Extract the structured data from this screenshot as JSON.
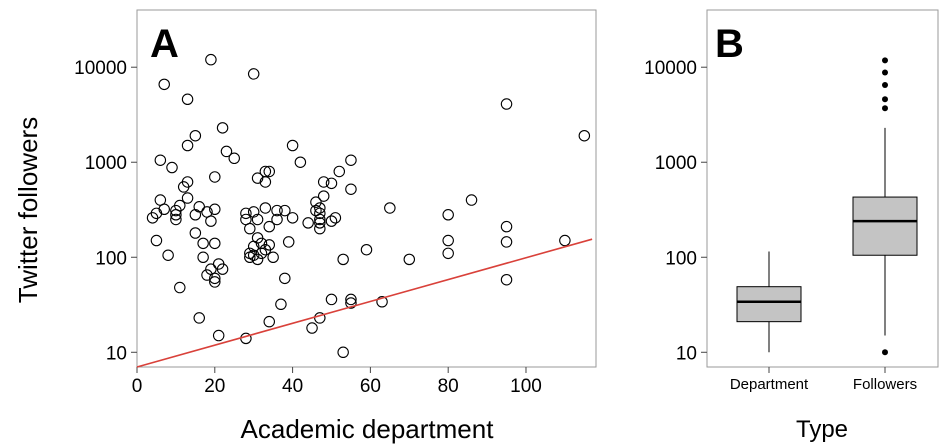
{
  "chart_data": [
    {
      "panel": "A",
      "type": "scatter",
      "xlabel": "Academic department",
      "ylabel": "Twitter followers",
      "xlim": [
        0,
        118
      ],
      "ylim": [
        7,
        40000
      ],
      "y_scale": "log",
      "x_ticks": [
        0,
        20,
        40,
        60,
        80,
        100
      ],
      "y_ticks": [
        10,
        100,
        1000,
        10000
      ],
      "grid": false,
      "fit_line": {
        "color": "#d9413a",
        "x": [
          0,
          117
        ],
        "y": [
          7,
          155
        ]
      },
      "points": [
        [
          4,
          260
        ],
        [
          5,
          150
        ],
        [
          5,
          290
        ],
        [
          6,
          1050
        ],
        [
          6,
          400
        ],
        [
          7,
          6600
        ],
        [
          7,
          320
        ],
        [
          8,
          105
        ],
        [
          9,
          880
        ],
        [
          10,
          280
        ],
        [
          10,
          310
        ],
        [
          10,
          250
        ],
        [
          11,
          350
        ],
        [
          11,
          48
        ],
        [
          12,
          550
        ],
        [
          13,
          4600
        ],
        [
          13,
          1500
        ],
        [
          13,
          620
        ],
        [
          13,
          420
        ],
        [
          15,
          1900
        ],
        [
          15,
          280
        ],
        [
          15,
          180
        ],
        [
          16,
          23
        ],
        [
          16,
          340
        ],
        [
          17,
          140
        ],
        [
          17,
          100
        ],
        [
          18,
          300
        ],
        [
          18,
          65
        ],
        [
          19,
          12000
        ],
        [
          19,
          240
        ],
        [
          19,
          75
        ],
        [
          20,
          700
        ],
        [
          20,
          320
        ],
        [
          20,
          140
        ],
        [
          20,
          60
        ],
        [
          20,
          55
        ],
        [
          21,
          15
        ],
        [
          21,
          85
        ],
        [
          22,
          2300
        ],
        [
          22,
          75
        ],
        [
          23,
          1300
        ],
        [
          25,
          1100
        ],
        [
          28,
          14
        ],
        [
          28,
          250
        ],
        [
          28,
          290
        ],
        [
          29,
          200
        ],
        [
          29,
          110
        ],
        [
          29,
          100
        ],
        [
          30,
          8500
        ],
        [
          30,
          105
        ],
        [
          30,
          300
        ],
        [
          30,
          130
        ],
        [
          31,
          160
        ],
        [
          31,
          95
        ],
        [
          31,
          680
        ],
        [
          31,
          250
        ],
        [
          32,
          110
        ],
        [
          32,
          140
        ],
        [
          33,
          800
        ],
        [
          33,
          120
        ],
        [
          33,
          620
        ],
        [
          33,
          330
        ],
        [
          34,
          800
        ],
        [
          34,
          210
        ],
        [
          34,
          135
        ],
        [
          34,
          21
        ],
        [
          35,
          100
        ],
        [
          36,
          250
        ],
        [
          36,
          310
        ],
        [
          37,
          32
        ],
        [
          38,
          60
        ],
        [
          38,
          310
        ],
        [
          39,
          145
        ],
        [
          40,
          1500
        ],
        [
          40,
          260
        ],
        [
          42,
          1000
        ],
        [
          44,
          230
        ],
        [
          45,
          18
        ],
        [
          46,
          380
        ],
        [
          46,
          310
        ],
        [
          47,
          330
        ],
        [
          47,
          290
        ],
        [
          47,
          250
        ],
        [
          47,
          230
        ],
        [
          47,
          200
        ],
        [
          47,
          23
        ],
        [
          48,
          440
        ],
        [
          48,
          620
        ],
        [
          50,
          36
        ],
        [
          50,
          600
        ],
        [
          50,
          240
        ],
        [
          51,
          260
        ],
        [
          52,
          800
        ],
        [
          53,
          95
        ],
        [
          53,
          10
        ],
        [
          55,
          1050
        ],
        [
          55,
          520
        ],
        [
          55,
          36
        ],
        [
          55,
          33
        ],
        [
          59,
          120
        ],
        [
          63,
          34
        ],
        [
          65,
          330
        ],
        [
          70,
          95
        ],
        [
          80,
          280
        ],
        [
          80,
          150
        ],
        [
          80,
          110
        ],
        [
          86,
          400
        ],
        [
          95,
          4100
        ],
        [
          95,
          210
        ],
        [
          95,
          145
        ],
        [
          95,
          58
        ],
        [
          110,
          150
        ],
        [
          115,
          1900
        ]
      ]
    },
    {
      "panel": "B",
      "type": "box",
      "xlabel": "Type",
      "categories": [
        "Department",
        "Followers"
      ],
      "y_scale": "log",
      "ylim": [
        7,
        40000
      ],
      "y_ticks": [
        10,
        100,
        1000,
        10000
      ],
      "fill_color": "#c4c4c4",
      "boxes": [
        {
          "category": "Department",
          "whisker_low": 10,
          "q1": 21,
          "median": 34,
          "q3": 49,
          "whisker_high": 115,
          "outliers": []
        },
        {
          "category": "Followers",
          "whisker_low": 15,
          "q1": 105,
          "median": 240,
          "q3": 430,
          "whisker_high": 2300,
          "outliers": [
            10,
            3700,
            4600,
            6500,
            8800,
            11800
          ]
        }
      ]
    }
  ]
}
